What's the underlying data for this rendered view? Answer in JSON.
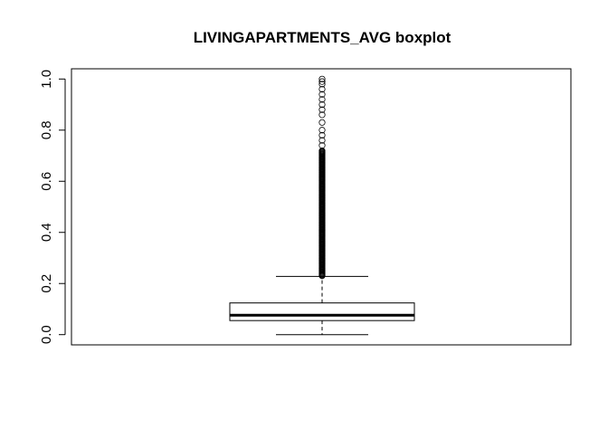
{
  "chart_data": {
    "type": "boxplot",
    "title": "LIVINGAPARTMENTS_AVG boxplot",
    "xlabel": "",
    "ylabel": "",
    "ylim": [
      -0.04,
      1.04
    ],
    "yticks": [
      0.0,
      0.2,
      0.4,
      0.6,
      0.8,
      1.0
    ],
    "ytick_labels": [
      "0.0",
      "0.2",
      "0.4",
      "0.6",
      "0.8",
      "1.0"
    ],
    "grid": false,
    "series": [
      {
        "whisker_low": 0.0,
        "q1": 0.055,
        "median": 0.076,
        "q3": 0.124,
        "whisker_high": 0.228,
        "outliers_dense_range": [
          0.23,
          0.72
        ],
        "outliers": [
          0.74,
          0.76,
          0.78,
          0.8,
          0.83,
          0.86,
          0.88,
          0.9,
          0.92,
          0.94,
          0.96,
          0.98,
          0.99,
          1.0
        ]
      }
    ],
    "colors": {
      "box_stroke": "#000000",
      "median": "#000000",
      "outlier_stroke": "#000000"
    }
  }
}
